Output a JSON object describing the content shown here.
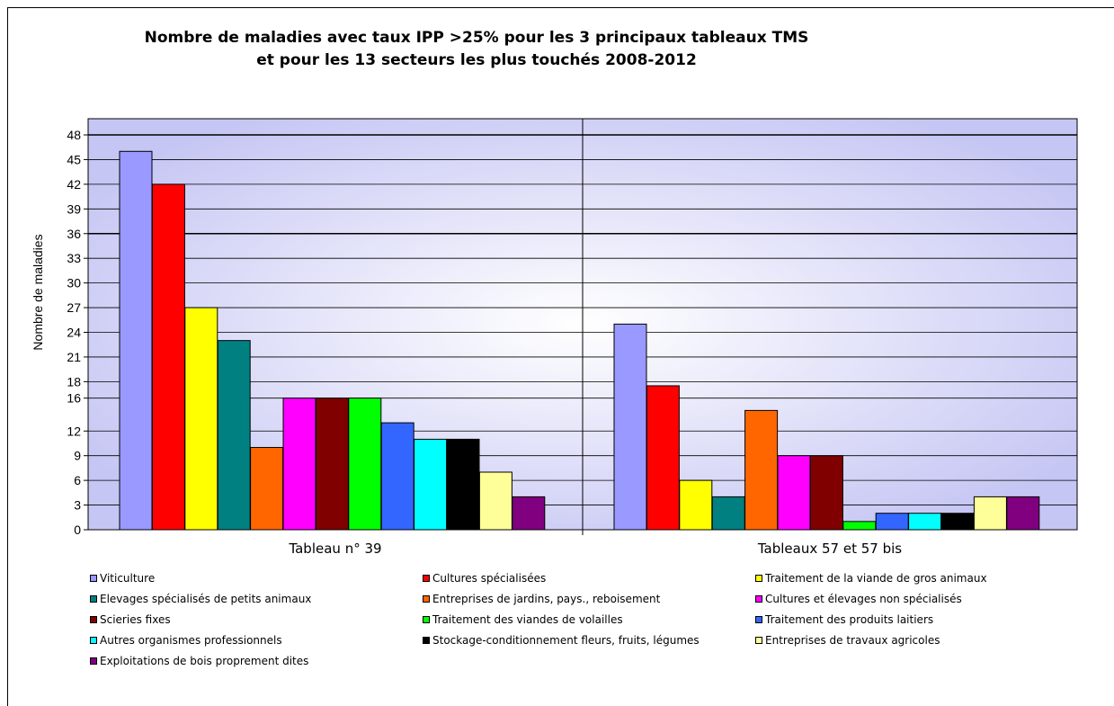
{
  "chart_data": {
    "type": "bar",
    "title": [
      "Nombre de maladies avec taux IPP >25% pour les 3 principaux tableaux TMS",
      "et pour les 13 secteurs les plus touchés 2008-2012"
    ],
    "xlabel": "",
    "ylabel": "Nombre de maladies",
    "ylim": [
      0,
      48
    ],
    "yticks": [
      0,
      3,
      6,
      9,
      12,
      16,
      18,
      21,
      24,
      27,
      30,
      33,
      36,
      39,
      42,
      45,
      48
    ],
    "grid": true,
    "legend_position": "bottom",
    "categories": [
      "Tableau n° 39",
      "Tableaux 57 et 57 bis"
    ],
    "series": [
      {
        "name": "Viticulture",
        "color": "#9999ff",
        "values": [
          46,
          25
        ]
      },
      {
        "name": "Cultures spécialisées",
        "color": "#ff0000",
        "values": [
          42,
          17.5
        ]
      },
      {
        "name": "Traitement de la viande de gros animaux",
        "color": "#ffff00",
        "values": [
          27,
          6
        ]
      },
      {
        "name": "Elevages spécialisés de petits animaux",
        "color": "#008080",
        "values": [
          23,
          4
        ]
      },
      {
        "name": "Entreprises de jardins, pays., reboisement",
        "color": "#ff6600",
        "values": [
          10,
          14.5
        ]
      },
      {
        "name": "Cultures et élevages non spécialisés",
        "color": "#ff00ff",
        "values": [
          16,
          9
        ]
      },
      {
        "name": "Scieries fixes",
        "color": "#800000",
        "values": [
          16,
          9
        ]
      },
      {
        "name": "Traitement des viandes de volailles",
        "color": "#00ff00",
        "values": [
          16,
          1
        ]
      },
      {
        "name": "Traitement des produits laitiers",
        "color": "#3366ff",
        "values": [
          13,
          2
        ]
      },
      {
        "name": "Autres organismes professionnels",
        "color": "#00ffff",
        "values": [
          11,
          2
        ]
      },
      {
        "name": "Stockage-conditionnement fleurs, fruits, légumes",
        "color": "#000000",
        "values": [
          11,
          2
        ]
      },
      {
        "name": "Entreprises de travaux agricoles",
        "color": "#ffff99",
        "values": [
          7,
          4
        ]
      },
      {
        "name": "Exploitations de bois proprement dites",
        "color": "#800080",
        "values": [
          4,
          4
        ]
      }
    ]
  }
}
